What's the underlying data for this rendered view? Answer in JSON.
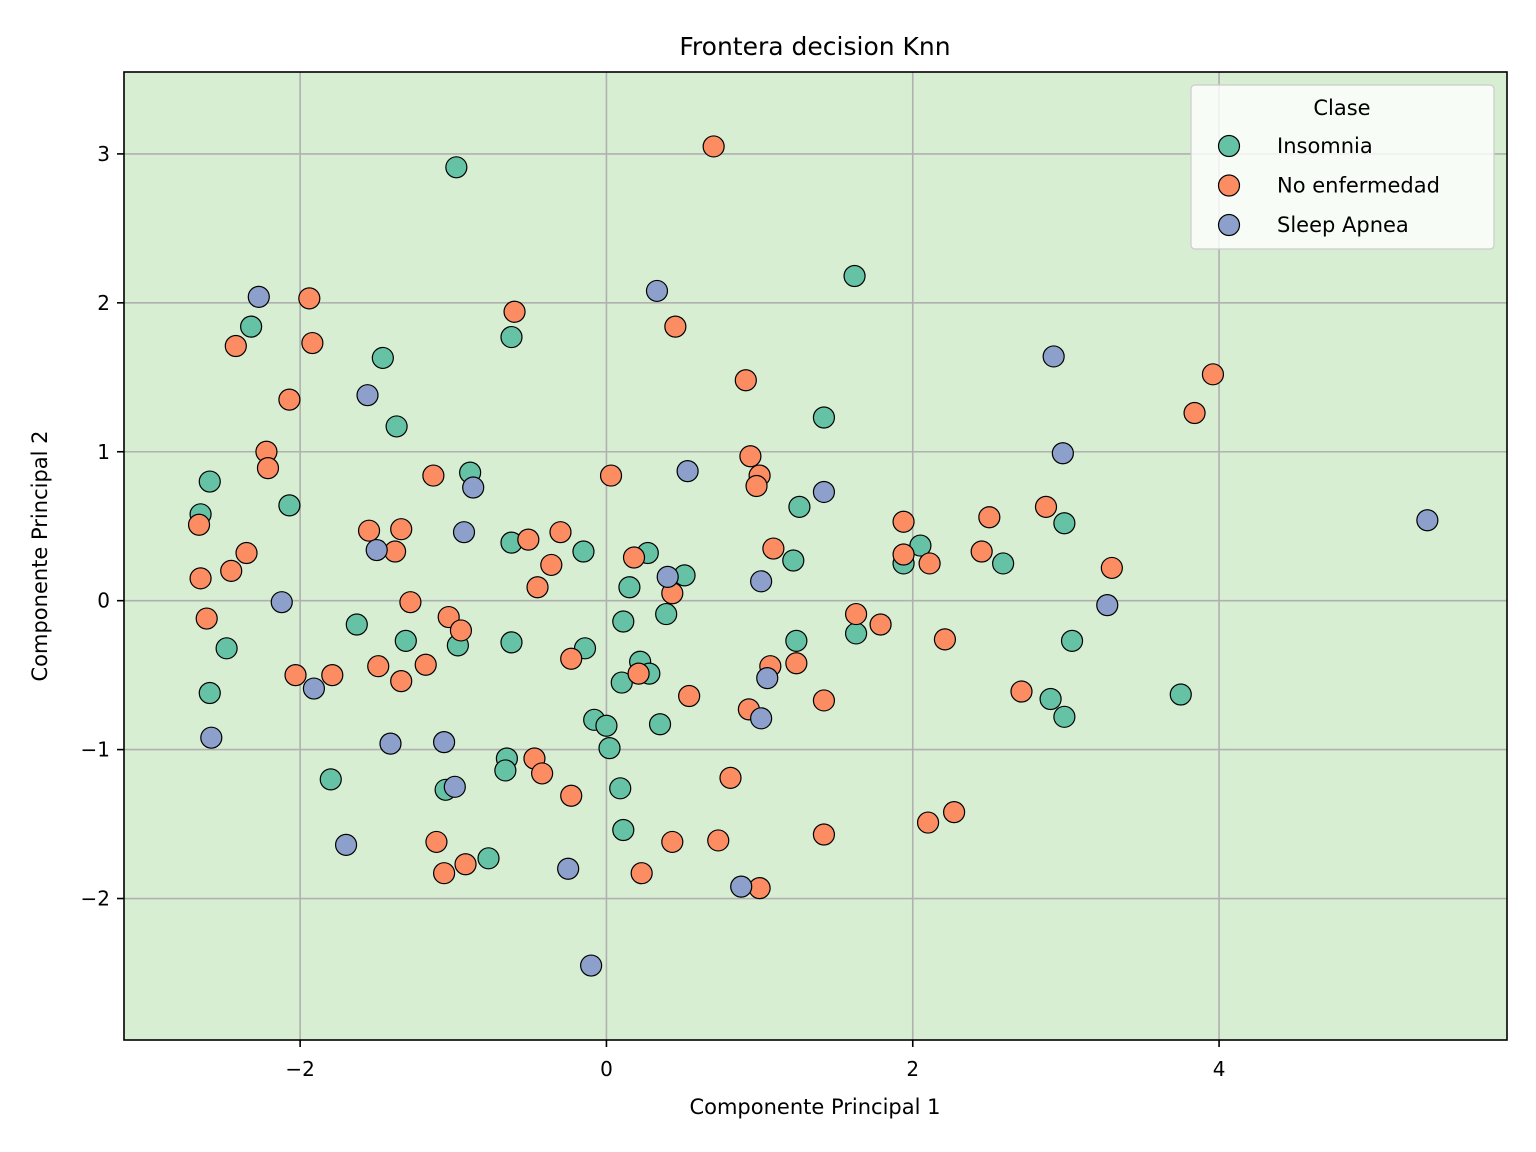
{
  "chart_data": {
    "type": "scatter",
    "title": "Frontera decision Knn",
    "xlabel": "Componente Principal 1",
    "ylabel": "Componente Principal 2",
    "xlim": [
      -3.15,
      5.88
    ],
    "ylim": [
      -2.95,
      3.55
    ],
    "xticks": [
      -2,
      0,
      2,
      4
    ],
    "yticks": [
      -2,
      -1,
      0,
      1,
      2,
      3
    ],
    "xtick_labels": [
      "−2",
      "0",
      "2",
      "4"
    ],
    "ytick_labels": [
      "−2",
      "−1",
      "0",
      "1",
      "2",
      "3"
    ],
    "grid": true,
    "background_color": "#d7eed2",
    "legend": {
      "title": "Clase",
      "placement": "top-right"
    },
    "series": [
      {
        "name": "Insomnia",
        "color": "#66c2a5",
        "points": [
          [
            -0.98,
            2.91
          ],
          [
            1.62,
            2.18
          ],
          [
            -2.32,
            1.84
          ],
          [
            -1.46,
            1.63
          ],
          [
            -0.62,
            1.77
          ],
          [
            1.42,
            1.23
          ],
          [
            -1.37,
            1.17
          ],
          [
            -2.59,
            0.8
          ],
          [
            -0.89,
            0.86
          ],
          [
            -2.07,
            0.64
          ],
          [
            -2.65,
            0.58
          ],
          [
            1.26,
            0.63
          ],
          [
            2.99,
            0.52
          ],
          [
            -0.62,
            0.39
          ],
          [
            -0.15,
            0.33
          ],
          [
            0.27,
            0.32
          ],
          [
            1.22,
            0.27
          ],
          [
            2.05,
            0.37
          ],
          [
            1.94,
            0.25
          ],
          [
            2.59,
            0.25
          ],
          [
            0.51,
            0.17
          ],
          [
            0.15,
            0.09
          ],
          [
            -1.63,
            -0.16
          ],
          [
            0.11,
            -0.14
          ],
          [
            0.39,
            -0.09
          ],
          [
            -2.48,
            -0.32
          ],
          [
            -1.31,
            -0.27
          ],
          [
            -0.97,
            -0.3
          ],
          [
            -0.62,
            -0.28
          ],
          [
            -0.14,
            -0.32
          ],
          [
            1.24,
            -0.27
          ],
          [
            1.63,
            -0.22
          ],
          [
            3.04,
            -0.27
          ],
          [
            0.22,
            -0.41
          ],
          [
            0.28,
            -0.49
          ],
          [
            0.1,
            -0.55
          ],
          [
            -2.59,
            -0.62
          ],
          [
            2.9,
            -0.66
          ],
          [
            3.75,
            -0.63
          ],
          [
            2.99,
            -0.78
          ],
          [
            -0.08,
            -0.8
          ],
          [
            0.0,
            -0.84
          ],
          [
            0.35,
            -0.83
          ],
          [
            0.02,
            -0.99
          ],
          [
            -0.65,
            -1.06
          ],
          [
            -0.66,
            -1.14
          ],
          [
            -1.8,
            -1.2
          ],
          [
            -1.05,
            -1.27
          ],
          [
            0.09,
            -1.26
          ],
          [
            0.11,
            -1.54
          ],
          [
            -0.77,
            -1.73
          ]
        ]
      },
      {
        "name": "No enfermedad",
        "color": "#fc8d62",
        "points": [
          [
            0.7,
            3.05
          ],
          [
            -1.94,
            2.03
          ],
          [
            -0.6,
            1.94
          ],
          [
            0.45,
            1.84
          ],
          [
            -2.42,
            1.71
          ],
          [
            -1.92,
            1.73
          ],
          [
            3.96,
            1.52
          ],
          [
            0.91,
            1.48
          ],
          [
            -2.07,
            1.35
          ],
          [
            3.84,
            1.26
          ],
          [
            -2.22,
            1.0
          ],
          [
            0.94,
            0.97
          ],
          [
            -2.21,
            0.89
          ],
          [
            1.0,
            0.84
          ],
          [
            -1.13,
            0.84
          ],
          [
            0.03,
            0.84
          ],
          [
            0.98,
            0.77
          ],
          [
            2.87,
            0.63
          ],
          [
            2.5,
            0.56
          ],
          [
            1.94,
            0.53
          ],
          [
            -2.66,
            0.51
          ],
          [
            -1.55,
            0.47
          ],
          [
            -1.34,
            0.48
          ],
          [
            -0.3,
            0.46
          ],
          [
            -0.51,
            0.41
          ],
          [
            1.09,
            0.35
          ],
          [
            -2.35,
            0.32
          ],
          [
            -1.38,
            0.33
          ],
          [
            2.45,
            0.33
          ],
          [
            1.94,
            0.31
          ],
          [
            0.18,
            0.29
          ],
          [
            2.11,
            0.25
          ],
          [
            -0.36,
            0.24
          ],
          [
            -2.45,
            0.2
          ],
          [
            3.3,
            0.22
          ],
          [
            -2.65,
            0.15
          ],
          [
            -0.45,
            0.09
          ],
          [
            0.43,
            0.05
          ],
          [
            -1.28,
            -0.01
          ],
          [
            -2.61,
            -0.12
          ],
          [
            -1.03,
            -0.11
          ],
          [
            1.63,
            -0.09
          ],
          [
            1.79,
            -0.16
          ],
          [
            -0.95,
            -0.2
          ],
          [
            2.21,
            -0.26
          ],
          [
            -0.23,
            -0.39
          ],
          [
            -1.49,
            -0.44
          ],
          [
            -1.18,
            -0.43
          ],
          [
            1.07,
            -0.44
          ],
          [
            1.24,
            -0.42
          ],
          [
            0.21,
            -0.49
          ],
          [
            -2.03,
            -0.5
          ],
          [
            -1.79,
            -0.5
          ],
          [
            -1.34,
            -0.54
          ],
          [
            2.71,
            -0.61
          ],
          [
            0.54,
            -0.64
          ],
          [
            1.42,
            -0.67
          ],
          [
            0.93,
            -0.73
          ],
          [
            -0.47,
            -1.06
          ],
          [
            -0.42,
            -1.16
          ],
          [
            0.81,
            -1.19
          ],
          [
            -0.23,
            -1.31
          ],
          [
            2.27,
            -1.42
          ],
          [
            2.1,
            -1.49
          ],
          [
            1.42,
            -1.57
          ],
          [
            -1.11,
            -1.62
          ],
          [
            0.43,
            -1.62
          ],
          [
            0.73,
            -1.61
          ],
          [
            -0.92,
            -1.77
          ],
          [
            -1.06,
            -1.83
          ],
          [
            0.23,
            -1.83
          ],
          [
            1.0,
            -1.93
          ]
        ]
      },
      {
        "name": "Sleep Apnea",
        "color": "#8da0cb",
        "points": [
          [
            -2.27,
            2.04
          ],
          [
            0.33,
            2.08
          ],
          [
            2.92,
            1.64
          ],
          [
            -1.56,
            1.38
          ],
          [
            2.98,
            0.99
          ],
          [
            0.53,
            0.87
          ],
          [
            -0.87,
            0.76
          ],
          [
            1.42,
            0.73
          ],
          [
            -0.93,
            0.46
          ],
          [
            5.36,
            0.54
          ],
          [
            -1.5,
            0.34
          ],
          [
            0.4,
            0.16
          ],
          [
            1.01,
            0.13
          ],
          [
            -2.12,
            -0.01
          ],
          [
            3.27,
            -0.03
          ],
          [
            -1.91,
            -0.59
          ],
          [
            1.05,
            -0.52
          ],
          [
            -2.58,
            -0.92
          ],
          [
            1.01,
            -0.79
          ],
          [
            -1.41,
            -0.96
          ],
          [
            -1.06,
            -0.95
          ],
          [
            -0.99,
            -1.25
          ],
          [
            -1.7,
            -1.64
          ],
          [
            -0.25,
            -1.8
          ],
          [
            0.88,
            -1.92
          ],
          [
            -0.1,
            -2.45
          ]
        ]
      }
    ]
  }
}
